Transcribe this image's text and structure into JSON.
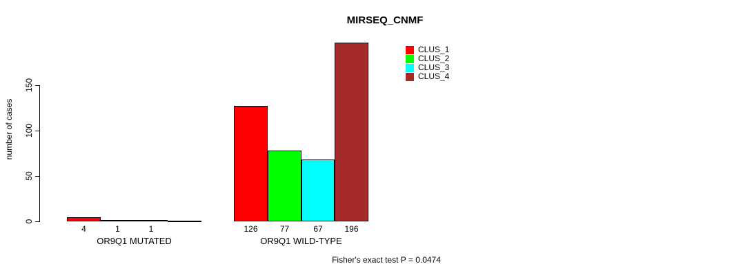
{
  "title": "MIRSEQ_CNMF",
  "footer": "Fisher's exact test P = 0.0474",
  "colors": {
    "background": "#ffffff",
    "axis": "#000000",
    "text": "#000000",
    "clus_1": "#ff0000",
    "clus_2": "#00ff00",
    "clus_3": "#00ffff",
    "clus_4": "#a52a2a"
  },
  "chart_data": {
    "type": "bar",
    "title": "MIRSEQ_CNMF",
    "xlabel": "",
    "ylabel": "number of cases",
    "ylim": [
      0,
      196
    ],
    "yticks": [
      0,
      50,
      100,
      150
    ],
    "grid": false,
    "legend_position": "inside-top-right",
    "series": [
      {
        "name": "CLUS_1",
        "color": "#ff0000"
      },
      {
        "name": "CLUS_2",
        "color": "#00ff00"
      },
      {
        "name": "CLUS_3",
        "color": "#00ffff"
      },
      {
        "name": "CLUS_4",
        "color": "#a52a2a"
      }
    ],
    "groups": [
      {
        "label": "OR9Q1 MUTATED",
        "values": [
          4,
          1,
          1,
          0
        ],
        "bar_labels": [
          "4",
          "1",
          "1",
          ""
        ]
      },
      {
        "label": "OR9Q1 WILD-TYPE",
        "values": [
          126,
          77,
          67,
          196
        ],
        "bar_labels": [
          "126",
          "77",
          "67",
          "196"
        ]
      }
    ],
    "annotation": "Fisher's exact test P = 0.0474"
  }
}
